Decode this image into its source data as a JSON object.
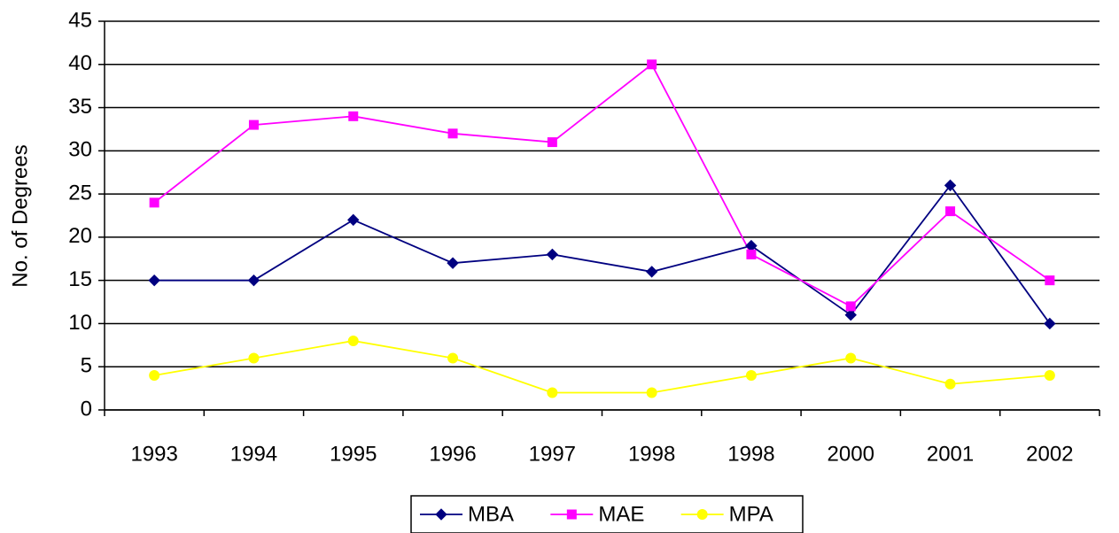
{
  "chart_data": {
    "type": "line",
    "y_label": "No. of Degrees",
    "categories": [
      "1993",
      "1994",
      "1995",
      "1996",
      "1997",
      "1998",
      "1998",
      "2000",
      "2001",
      "2002"
    ],
    "series": [
      {
        "name": "MBA",
        "color": "#000080",
        "marker": "diamond",
        "values": [
          15,
          15,
          22,
          17,
          18,
          16,
          19,
          11,
          26,
          10
        ]
      },
      {
        "name": "MAE",
        "color": "#ff00ff",
        "marker": "square",
        "values": [
          24,
          33,
          34,
          32,
          31,
          40,
          18,
          12,
          23,
          15
        ]
      },
      {
        "name": "MPA",
        "color": "#ffff00",
        "marker": "circle",
        "values": [
          4,
          6,
          8,
          6,
          2,
          2,
          4,
          6,
          3,
          4
        ]
      }
    ],
    "ylim": [
      0,
      45
    ],
    "yticks": [
      0,
      5,
      10,
      15,
      20,
      25,
      30,
      35,
      40,
      45
    ],
    "grid": true
  }
}
